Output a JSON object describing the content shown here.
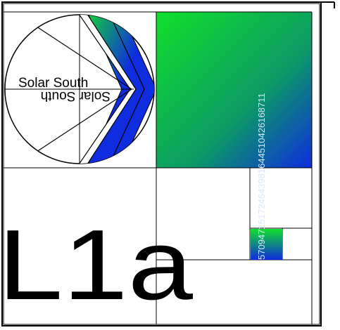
{
  "logo": {
    "label_upright": "Solar South",
    "label_inverted": "Solar South",
    "serial_number": "570947151724643981644510426168711",
    "mark": "L1a"
  },
  "colors": {
    "frame": "#000000",
    "background": "#ffffff",
    "gradient_green": "#11e02b",
    "gradient_blue": "#0f2cdf",
    "serial_text": "#d9e8ff"
  }
}
